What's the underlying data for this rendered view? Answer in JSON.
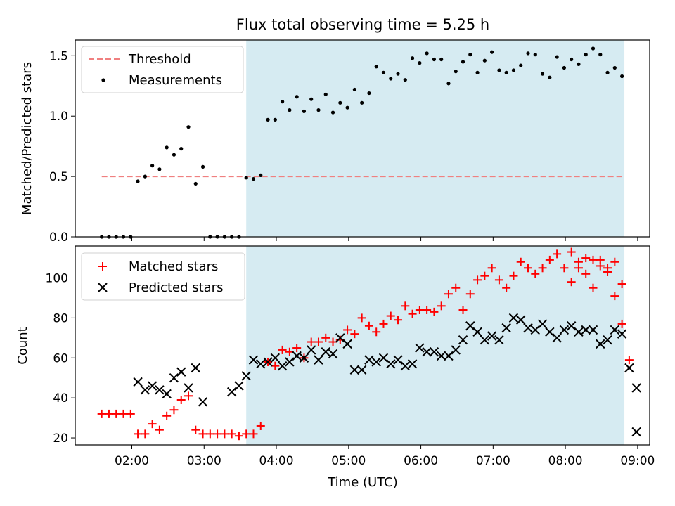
{
  "title": "Flux total observing time = 5.25 h",
  "colors": {
    "shade": "#add8e6",
    "threshold": "#f08080",
    "matched": "#ff0000",
    "predicted": "#000000",
    "measurement": "#000000"
  },
  "chart_data": [
    {
      "type": "scatter",
      "title": "Flux total observing time = 5.25 h",
      "xlabel": "",
      "ylabel": "Matched/Predicted stars",
      "xlim": [
        "01:13",
        "09:10"
      ],
      "ylim": [
        0,
        1.63
      ],
      "yticks": [
        0.0,
        0.5,
        1.0,
        1.5
      ],
      "ytick_labels": [
        "0.0",
        "0.5",
        "1.0",
        "1.5"
      ],
      "shaded_span": [
        "03:35",
        "08:49"
      ],
      "legend": {
        "position": "top-left",
        "entries": [
          "Threshold",
          "Measurements"
        ]
      },
      "series": [
        {
          "name": "Threshold",
          "kind": "dashed-line",
          "x": [
            "01:35",
            "08:49"
          ],
          "y": [
            0.5,
            0.5
          ]
        },
        {
          "name": "Measurements",
          "kind": "points",
          "x": [
            "01:35",
            "01:41",
            "01:47",
            "01:53",
            "01:59",
            "02:05",
            "02:11",
            "02:17",
            "02:23",
            "02:29",
            "02:35",
            "02:41",
            "02:47",
            "02:53",
            "02:59",
            "03:05",
            "03:11",
            "03:17",
            "03:23",
            "03:29",
            "03:35",
            "03:41",
            "03:47",
            "03:53",
            "03:59",
            "04:05",
            "04:11",
            "04:17",
            "04:23",
            "04:29",
            "04:35",
            "04:41",
            "04:47",
            "04:53",
            "04:59",
            "05:05",
            "05:11",
            "05:17",
            "05:23",
            "05:29",
            "05:35",
            "05:41",
            "05:47",
            "05:53",
            "05:59",
            "06:05",
            "06:11",
            "06:17",
            "06:23",
            "06:29",
            "06:35",
            "06:41",
            "06:47",
            "06:53",
            "06:59",
            "07:05",
            "07:11",
            "07:17",
            "07:23",
            "07:29",
            "07:35",
            "07:41",
            "07:47",
            "07:53",
            "07:59",
            "08:05",
            "08:11",
            "08:17",
            "08:23",
            "08:29",
            "08:35",
            "08:41",
            "08:47"
          ],
          "y": [
            0.0,
            0.0,
            0.0,
            0.0,
            0.0,
            0.46,
            0.5,
            0.59,
            0.56,
            0.74,
            0.68,
            0.73,
            0.91,
            0.44,
            0.58,
            0.0,
            0.0,
            0.0,
            0.0,
            0.0,
            0.49,
            0.48,
            0.51,
            0.97,
            0.97,
            1.12,
            1.05,
            1.16,
            1.04,
            1.14,
            1.05,
            1.18,
            1.03,
            1.11,
            1.07,
            1.22,
            1.11,
            1.19,
            1.41,
            1.36,
            1.31,
            1.35,
            1.3,
            1.48,
            1.44,
            1.52,
            1.47,
            1.47,
            1.27,
            1.37,
            1.45,
            1.51,
            1.36,
            1.46,
            1.53,
            1.38,
            1.36,
            1.38,
            1.42,
            1.52,
            1.51,
            1.35,
            1.32,
            1.49,
            1.4,
            1.47,
            1.43,
            1.51,
            1.56,
            1.51,
            1.36,
            1.4,
            1.33
          ]
        }
      ]
    },
    {
      "type": "scatter",
      "title": "",
      "xlabel": "Time (UTC)",
      "ylabel": "Count",
      "xlim": [
        "01:13",
        "09:10"
      ],
      "ylim": [
        16.5,
        116
      ],
      "yticks": [
        20,
        40,
        60,
        80,
        100
      ],
      "ytick_labels": [
        "20",
        "40",
        "60",
        "80",
        "100"
      ],
      "xticks": [
        "02:00",
        "03:00",
        "04:00",
        "05:00",
        "06:00",
        "07:00",
        "08:00",
        "09:00"
      ],
      "shaded_span": [
        "03:35",
        "08:49"
      ],
      "legend": {
        "position": "top-left",
        "entries": [
          "Matched stars",
          "Predicted stars"
        ]
      },
      "series": [
        {
          "name": "Matched stars",
          "marker": "plus",
          "x": [
            "01:35",
            "01:41",
            "01:47",
            "01:53",
            "01:59",
            "02:05",
            "02:11",
            "02:17",
            "02:23",
            "02:29",
            "02:35",
            "02:41",
            "02:47",
            "02:53",
            "02:59",
            "03:05",
            "03:11",
            "03:17",
            "03:23",
            "03:29",
            "03:35",
            "03:41",
            "03:47",
            "03:53",
            "03:59",
            "04:05",
            "04:11",
            "04:17",
            "04:23",
            "04:29",
            "04:35",
            "04:41",
            "04:47",
            "04:53",
            "04:59",
            "05:05",
            "05:11",
            "05:17",
            "05:23",
            "05:29",
            "05:35",
            "05:41",
            "05:47",
            "05:53",
            "05:59",
            "06:05",
            "06:11",
            "06:17",
            "06:23",
            "06:29",
            "06:35",
            "06:41",
            "06:47",
            "06:53",
            "06:59",
            "07:05",
            "07:11",
            "07:17",
            "07:23",
            "07:29",
            "07:35",
            "07:41",
            "07:47",
            "07:53",
            "07:59",
            "08:05",
            "08:11",
            "08:17",
            "08:23",
            "08:29",
            "08:35",
            "08:41",
            "08:47"
          ],
          "y": [
            32,
            32,
            32,
            32,
            32,
            22,
            22,
            27,
            24,
            31,
            34,
            39,
            41,
            24,
            22,
            22,
            22,
            22,
            22,
            21,
            22,
            22,
            26,
            58,
            56,
            64,
            63,
            65,
            60,
            68,
            68,
            70,
            68,
            69,
            74,
            72,
            80,
            76,
            73,
            77,
            81,
            79,
            86,
            82,
            84,
            84,
            83,
            86,
            92,
            95,
            84,
            92,
            99,
            101,
            105,
            99,
            95,
            101,
            108,
            105,
            102,
            105,
            109,
            112,
            105,
            113,
            105,
            110,
            109,
            109,
            103,
            108,
            97
          ],
          "extra_tail": {
            "x": [
              "08:05",
              "08:11",
              "08:17",
              "08:23",
              "08:29",
              "08:35",
              "08:41",
              "08:47",
              "08:53"
            ],
            "y": [
              98,
              108,
              102,
              95,
              106,
              105,
              91,
              77,
              59
            ]
          }
        },
        {
          "name": "Predicted stars",
          "marker": "x",
          "x": [
            "02:05",
            "02:11",
            "02:17",
            "02:23",
            "02:29",
            "02:35",
            "02:41",
            "02:47",
            "02:53",
            "02:59",
            "03:23",
            "03:29",
            "03:35",
            "03:41",
            "03:47",
            "03:53",
            "03:59",
            "04:05",
            "04:11",
            "04:17",
            "04:23",
            "04:29",
            "04:35",
            "04:41",
            "04:47",
            "04:53",
            "04:59",
            "05:05",
            "05:11",
            "05:17",
            "05:23",
            "05:29",
            "05:35",
            "05:41",
            "05:47",
            "05:53",
            "05:59",
            "06:05",
            "06:11",
            "06:17",
            "06:23",
            "06:29",
            "06:35",
            "06:41",
            "06:47",
            "06:53",
            "06:59",
            "07:05",
            "07:11",
            "07:17",
            "07:23",
            "07:29",
            "07:35",
            "07:41",
            "07:47",
            "07:53",
            "07:59",
            "08:05",
            "08:11",
            "08:17",
            "08:23",
            "08:29",
            "08:35",
            "08:41",
            "08:47",
            "08:53",
            "08:59"
          ],
          "y": [
            48,
            44,
            46,
            44,
            42,
            50,
            53,
            45,
            55,
            38,
            43,
            46,
            51,
            59,
            57,
            58,
            60,
            56,
            58,
            61,
            60,
            64,
            59,
            63,
            62,
            70,
            67,
            54,
            54,
            59,
            58,
            60,
            57,
            59,
            56,
            57,
            65,
            63,
            63,
            61,
            61,
            64,
            69,
            76,
            73,
            69,
            71,
            69,
            75,
            80,
            79,
            75,
            74,
            77,
            73,
            70,
            74,
            76,
            73,
            74,
            74,
            67,
            69,
            74,
            72,
            55,
            45
          ],
          "extra_tail": {
            "x": [
              "08:59"
            ],
            "y": [
              23
            ]
          }
        }
      ]
    }
  ]
}
